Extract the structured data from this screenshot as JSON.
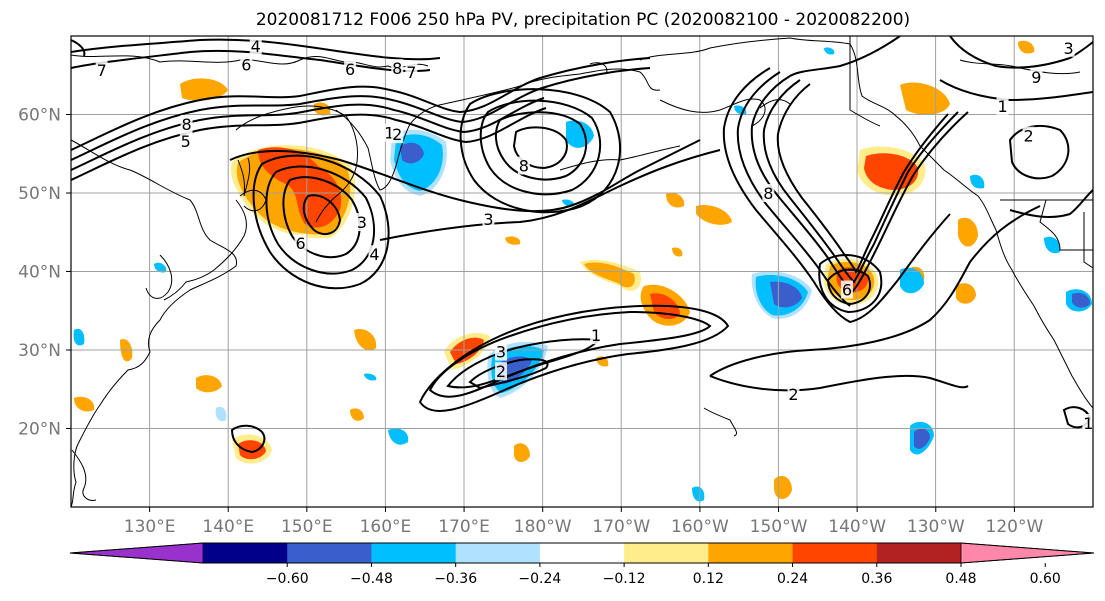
{
  "chart_data": {
    "type": "map",
    "title": "2020081712 F006 250 hPa PV, precipitation PC (2020082100 - 2020082200)",
    "lon_range": [
      120,
      250
    ],
    "lat_range": [
      10,
      70
    ],
    "lat_ticks": [
      {
        "value": 20,
        "label": "20°N"
      },
      {
        "value": 30,
        "label": "30°N"
      },
      {
        "value": 40,
        "label": "40°N"
      },
      {
        "value": 50,
        "label": "50°N"
      },
      {
        "value": 60,
        "label": "60°N"
      }
    ],
    "lon_ticks": [
      {
        "value": 130,
        "label": "130°E"
      },
      {
        "value": 140,
        "label": "140°E"
      },
      {
        "value": 150,
        "label": "150°E"
      },
      {
        "value": 160,
        "label": "160°E"
      },
      {
        "value": 170,
        "label": "170°E"
      },
      {
        "value": 180,
        "label": "180°W"
      },
      {
        "value": 190,
        "label": "170°W"
      },
      {
        "value": 200,
        "label": "160°W"
      },
      {
        "value": 210,
        "label": "150°W"
      },
      {
        "value": 220,
        "label": "140°W"
      },
      {
        "value": 230,
        "label": "130°W"
      },
      {
        "value": 240,
        "label": "120°W"
      }
    ],
    "grid": true,
    "colorbar": {
      "extend": "both",
      "colors": [
        "#9932CC",
        "#00008B",
        "#3A5FCD",
        "#00BFFF",
        "#B0E2FF",
        "#FFFFFF",
        "#FFEC8B",
        "#FFA500",
        "#FF4500",
        "#B22222",
        "#FF88AA"
      ],
      "tick_labels": [
        "−0.60",
        "−0.48",
        "−0.36",
        "−0.24",
        "−0.12",
        "0.12",
        "0.24",
        "0.36",
        "0.48",
        "0.60"
      ]
    },
    "contour_labels": [
      {
        "text": "4",
        "lon": 143.5,
        "lat": 68.7
      },
      {
        "text": "6",
        "lon": 142.3,
        "lat": 66.4
      },
      {
        "text": "6",
        "lon": 155.5,
        "lat": 65.8
      },
      {
        "text": "8",
        "lon": 161.5,
        "lat": 65.9
      },
      {
        "text": "7",
        "lon": 163.3,
        "lat": 65.4
      },
      {
        "text": "7",
        "lon": 123.9,
        "lat": 65.7
      },
      {
        "text": "8",
        "lon": 134.7,
        "lat": 58.8
      },
      {
        "text": "5",
        "lon": 134.6,
        "lat": 56.6
      },
      {
        "text": "1",
        "lon": 160.5,
        "lat": 57.7
      },
      {
        "text": "2",
        "lon": 161.5,
        "lat": 57.5
      },
      {
        "text": "8",
        "lon": 177.6,
        "lat": 53.5
      },
      {
        "text": "3",
        "lon": 173.1,
        "lat": 46.7
      },
      {
        "text": "3",
        "lon": 157.0,
        "lat": 46.3
      },
      {
        "text": "6",
        "lon": 149.2,
        "lat": 43.6
      },
      {
        "text": "4",
        "lon": 158.6,
        "lat": 42.2
      },
      {
        "text": "8",
        "lon": 208.7,
        "lat": 50.0
      },
      {
        "text": "6",
        "lon": 218.7,
        "lat": 37.7
      },
      {
        "text": "9",
        "lon": 242.8,
        "lat": 64.8
      },
      {
        "text": "3",
        "lon": 246.9,
        "lat": 68.5
      },
      {
        "text": "1",
        "lon": 238.5,
        "lat": 61.1
      },
      {
        "text": "2",
        "lon": 241.8,
        "lat": 57.3
      },
      {
        "text": "1",
        "lon": 186.8,
        "lat": 31.9
      },
      {
        "text": "3",
        "lon": 174.7,
        "lat": 29.8
      },
      {
        "text": "2",
        "lon": 174.7,
        "lat": 27.3
      },
      {
        "text": "2",
        "lon": 211.9,
        "lat": 24.4
      },
      {
        "text": "1",
        "lon": 249.4,
        "lat": 20.7
      }
    ]
  }
}
